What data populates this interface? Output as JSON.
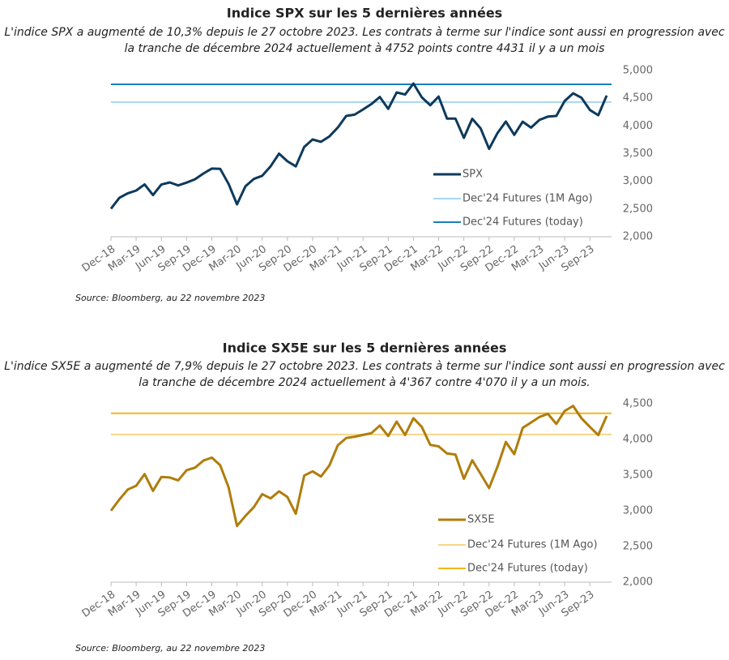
{
  "chart_data": [
    {
      "type": "line",
      "title": "Indice SPX sur les 5 dernières années",
      "subtitle": [
        "L'indice SPX a augmenté de 10,3% depuis le 27 octobre 2023. Les contrats à terme sur l'indice sont aussi en progression avec",
        "la tranche de décembre 2024 actuellement à 4752 points contre 4431 il y a un mois"
      ],
      "categories": [
        "Dec-18",
        null,
        null,
        "Mar-19",
        null,
        null,
        "Jun-19",
        null,
        null,
        "Sep-19",
        null,
        null,
        "Dec-19",
        null,
        null,
        "Mar-20",
        null,
        null,
        "Jun-20",
        null,
        null,
        "Sep-20",
        null,
        null,
        "Dec-20",
        null,
        null,
        "Mar-21",
        null,
        null,
        "Jun-21",
        null,
        null,
        "Sep-21",
        null,
        null,
        "Dec-21",
        null,
        null,
        "Mar-22",
        null,
        null,
        "Jun-22",
        null,
        null,
        "Sep-22",
        null,
        null,
        "Dec-22",
        null,
        null,
        "Mar-23",
        null,
        null,
        "Jun-23",
        null,
        null,
        "Sep-23",
        null,
        null
      ],
      "series": [
        {
          "name": "SPX",
          "color": "#0d3a5c",
          "values": [
            2507,
            2704,
            2784,
            2834,
            2946,
            2752,
            2942,
            2980,
            2926,
            2977,
            3038,
            3141,
            3231,
            3226,
            2954,
            2585,
            2912,
            3044,
            3100,
            3271,
            3500,
            3363,
            3270,
            3622,
            3756,
            3714,
            3811,
            3973,
            4181,
            4204,
            4298,
            4395,
            4523,
            4308,
            4605,
            4567,
            4766,
            4516,
            4374,
            4530,
            4132,
            4132,
            3785,
            4130,
            3955,
            3586,
            3872,
            4080,
            3840,
            4077,
            3970,
            4109,
            4169,
            4180,
            4450,
            4589,
            4508,
            4288,
            4194,
            4550
          ]
        }
      ],
      "reference_lines": [
        {
          "name": "Dec'24 Futures (1M Ago)",
          "color": "#a6d8f0",
          "value": 4431
        },
        {
          "name": "Dec'24 Futures (today)",
          "color": "#1a7fb8",
          "value": 4752
        }
      ],
      "ylim": [
        2000,
        5000
      ],
      "yticks": [
        {
          "value": 2000,
          "label": "2,000"
        },
        {
          "value": 2500,
          "label": "2,500"
        },
        {
          "value": 3000,
          "label": "3,000"
        },
        {
          "value": 3500,
          "label": "3,500"
        },
        {
          "value": 4000,
          "label": "4,000"
        },
        {
          "value": 4500,
          "label": "4,500"
        },
        {
          "value": 5000,
          "label": "5,000"
        }
      ],
      "grid": false,
      "source": "Source: Bloomberg, au 22 novembre 2023"
    },
    {
      "type": "line",
      "title": "Indice SX5E sur les 5 dernières années",
      "subtitle": [
        "L'indice SX5E a augmenté de 7,9% depuis le 27 octobre 2023. Les contrats à terme sur l'indice sont aussi en progression avec",
        "la tranche de décembre 2024 actuellement à 4'367 contre 4'070 il y a un mois."
      ],
      "categories": [
        "Dec-18",
        null,
        null,
        "Mar-19",
        null,
        null,
        "Jun-19",
        null,
        null,
        "Sep-19",
        null,
        null,
        "Dec-19",
        null,
        null,
        "Mar-20",
        null,
        null,
        "Jun-20",
        null,
        null,
        "Sep-20",
        null,
        null,
        "Dec-20",
        null,
        null,
        "Mar-21",
        null,
        null,
        "Jun-21",
        null,
        null,
        "Sep-21",
        null,
        null,
        "Dec-21",
        null,
        null,
        "Mar-22",
        null,
        null,
        "Jun-22",
        null,
        null,
        "Sep-22",
        null,
        null,
        "Dec-22",
        null,
        null,
        "Mar-23",
        null,
        null,
        "Jun-23",
        null,
        null,
        "Sep-23",
        null,
        null
      ],
      "series": [
        {
          "name": "SX5E",
          "color": "#b07d0c",
          "values": [
            3001,
            3159,
            3298,
            3351,
            3515,
            3280,
            3474,
            3467,
            3427,
            3569,
            3604,
            3703,
            3745,
            3640,
            3329,
            2787,
            2928,
            3050,
            3234,
            3174,
            3273,
            3194,
            2958,
            3493,
            3553,
            3481,
            3636,
            3919,
            4020,
            4039,
            4064,
            4089,
            4196,
            4048,
            4250,
            4063,
            4298,
            4175,
            3924,
            3903,
            3803,
            3789,
            3449,
            3708,
            3517,
            3318,
            3618,
            3965,
            3794,
            4163,
            4238,
            4315,
            4359,
            4218,
            4399,
            4471,
            4297,
            4175,
            4061,
            4330
          ]
        }
      ],
      "reference_lines": [
        {
          "name": "Dec'24 Futures (1M Ago)",
          "color": "#f5d78a",
          "value": 4070
        },
        {
          "name": "Dec'24 Futures (today)",
          "color": "#f2b51d",
          "value": 4367
        }
      ],
      "ylim": [
        2000,
        4500
      ],
      "yticks": [
        {
          "value": 2000,
          "label": "2,000"
        },
        {
          "value": 2500,
          "label": "2,500"
        },
        {
          "value": 3000,
          "label": "3,000"
        },
        {
          "value": 3500,
          "label": "3,500"
        },
        {
          "value": 4000,
          "label": "4,000"
        },
        {
          "value": 4500,
          "label": "4,500"
        }
      ],
      "grid": false,
      "source": "Source: Bloomberg, au 22 novembre 2023"
    }
  ]
}
